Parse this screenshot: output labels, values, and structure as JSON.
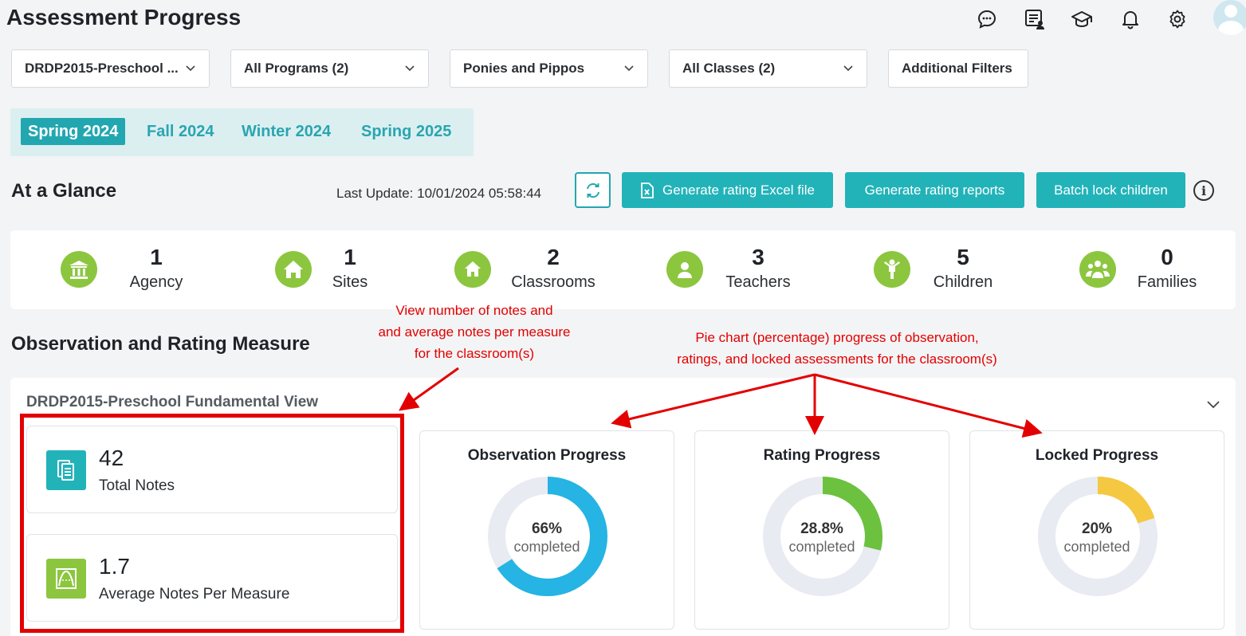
{
  "header": {
    "title": "Assessment Progress",
    "icons": [
      "chat-bubble-icon",
      "notes-user-icon",
      "graduation-cap-icon",
      "bell-icon",
      "gear-icon",
      "avatar"
    ]
  },
  "filters": {
    "assessment": "DRDP2015-Preschool ...",
    "programs": "All Programs (2)",
    "site": "Ponies and Pippos",
    "classes": "All Classes (2)",
    "additional": "Additional Filters"
  },
  "terms": [
    "Spring 2024",
    "Fall 2024",
    "Winter 2024",
    "Spring 2025"
  ],
  "active_term": "Spring 2024",
  "glance": {
    "title": "At a Glance",
    "last_update": "Last Update: 10/01/2024 05:58:44",
    "buttons": {
      "excel": "Generate rating Excel file",
      "reports": "Generate rating reports",
      "batch_lock": "Batch lock children"
    },
    "info": "i"
  },
  "stats": [
    {
      "value": "1",
      "label": "Agency"
    },
    {
      "value": "1",
      "label": "Sites"
    },
    {
      "value": "2",
      "label": "Classrooms"
    },
    {
      "value": "3",
      "label": "Teachers"
    },
    {
      "value": "5",
      "label": "Children"
    },
    {
      "value": "0",
      "label": "Families"
    }
  ],
  "observation": {
    "title": "Observation and Rating Measure",
    "view_title": "DRDP2015-Preschool Fundamental View",
    "notes": {
      "value": "42",
      "label": "Total Notes"
    },
    "avg": {
      "value": "1.7",
      "label": "Average Notes Per Measure"
    },
    "donuts": [
      {
        "title": "Observation Progress",
        "value_text": "66%",
        "sub": "completed",
        "fraction": 0.66,
        "color": "#25b4e3"
      },
      {
        "title": "Rating Progress",
        "value_text": "28.8%",
        "sub": "completed",
        "fraction": 0.288,
        "color": "#6cc13f"
      },
      {
        "title": "Locked Progress",
        "value_text": "20%",
        "sub": "completed",
        "fraction": 0.2,
        "color": "#f5c842"
      }
    ]
  },
  "annotations": {
    "notes_line1": "View number of notes and",
    "notes_line2": "and average notes per measure",
    "notes_line3": "for the classroom(s)",
    "pie_line1": "Pie chart (percentage) progress of observation,",
    "pie_line2": "ratings, and locked assessments for the classroom(s)"
  },
  "colors": {
    "teal": "#22b3b9",
    "green": "#8cc63f",
    "annotation_red": "#e30000"
  }
}
